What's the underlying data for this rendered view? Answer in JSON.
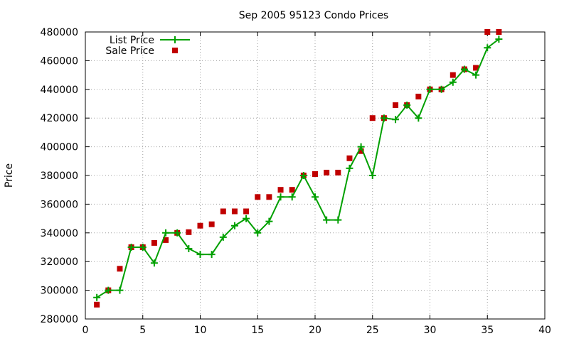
{
  "chart_data": {
    "type": "line",
    "title": "Sep 2005 95123 Condo Prices",
    "xlabel": "",
    "ylabel": "Price",
    "xlim": [
      0,
      40
    ],
    "ylim": [
      280000,
      480000
    ],
    "xticks": [
      0,
      5,
      10,
      15,
      20,
      25,
      30,
      35,
      40
    ],
    "yticks": [
      280000,
      300000,
      320000,
      340000,
      360000,
      380000,
      400000,
      420000,
      440000,
      460000,
      480000
    ],
    "grid": true,
    "legend_position": "top-left",
    "series": [
      {
        "name": "List Price",
        "style": "line-with-plus-markers",
        "color": "#00a000",
        "x": [
          1,
          2,
          3,
          4,
          5,
          6,
          7,
          8,
          9,
          10,
          11,
          12,
          13,
          14,
          15,
          16,
          17,
          18,
          19,
          20,
          21,
          22,
          23,
          24,
          25,
          26,
          27,
          28,
          29,
          30,
          31,
          32,
          33,
          34,
          35,
          36
        ],
        "y": [
          295000,
          300000,
          300000,
          330000,
          330000,
          319000,
          340000,
          340000,
          329000,
          325000,
          325000,
          337000,
          345000,
          350000,
          340000,
          348000,
          365000,
          365000,
          380000,
          365000,
          349000,
          349000,
          385000,
          400000,
          380000,
          420000,
          419000,
          429000,
          420000,
          440000,
          440000,
          445000,
          454000,
          450000,
          469000,
          475000
        ]
      },
      {
        "name": "Sale Price",
        "style": "square-markers",
        "color": "#c00000",
        "x": [
          1,
          2,
          3,
          4,
          5,
          6,
          7,
          8,
          9,
          10,
          11,
          12,
          13,
          14,
          15,
          16,
          17,
          18,
          19,
          20,
          21,
          22,
          23,
          24,
          25,
          26,
          27,
          28,
          29,
          30,
          31,
          32,
          33,
          34,
          35,
          36
        ],
        "y": [
          290000,
          300000,
          315000,
          330000,
          330000,
          333000,
          335000,
          340000,
          340500,
          345000,
          346000,
          355000,
          355000,
          355000,
          365000,
          365000,
          370000,
          370000,
          380000,
          381000,
          382000,
          382000,
          392000,
          397000,
          420000,
          420000,
          429000,
          429000,
          435000,
          440000,
          440000,
          450000,
          454000,
          455000,
          480000,
          480000
        ]
      }
    ]
  }
}
